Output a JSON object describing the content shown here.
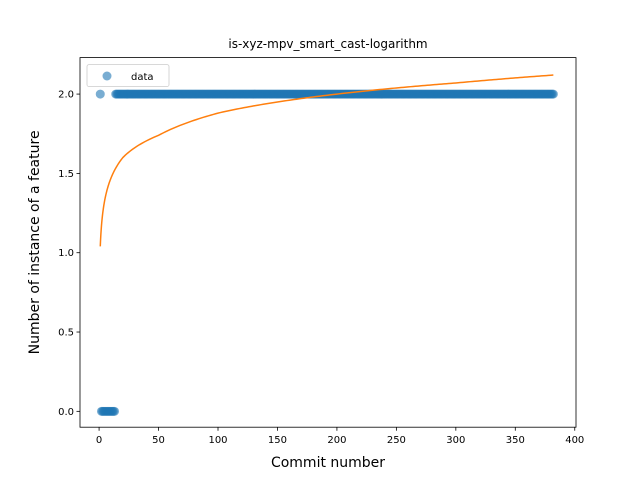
{
  "chart_data": {
    "type": "scatter",
    "title": "is-xyz-mpv_smart_cast-logarithm",
    "xlabel": "Commit number",
    "ylabel": "Number of instance of a feature",
    "xlim": [
      -16.05,
      401.05
    ],
    "ylim": [
      -0.1,
      2.23
    ],
    "xticks": [
      0,
      50,
      100,
      150,
      200,
      250,
      300,
      350,
      400
    ],
    "yticks": [
      0.0,
      0.5,
      1.0,
      1.5,
      2.0
    ],
    "xtick_labels": [
      "0",
      "50",
      "100",
      "150",
      "200",
      "250",
      "300",
      "350",
      "400"
    ],
    "ytick_labels": [
      "0.0",
      "0.5",
      "1.0",
      "1.5",
      "2.0"
    ],
    "grid": false,
    "legend_position": "top-left",
    "colors": {
      "data": "#1f77b4",
      "fit": "#ff7f0e"
    },
    "series": [
      {
        "name": "data",
        "kind": "points",
        "segments": [
          {
            "x_start": 1,
            "x_end": 1,
            "y": 2
          },
          {
            "x_start": 2,
            "x_end": 13,
            "y": 0
          },
          {
            "x_start": 14,
            "x_end": 382,
            "y": 2
          }
        ]
      },
      {
        "kind": "line",
        "curve": "logarithmic",
        "x_range": [
          1,
          382
        ],
        "y_at": {
          "1": 1.04,
          "20": 1.6,
          "50": 1.74,
          "100": 1.88,
          "200": 2.0,
          "300": 2.07,
          "382": 2.12
        }
      }
    ]
  }
}
